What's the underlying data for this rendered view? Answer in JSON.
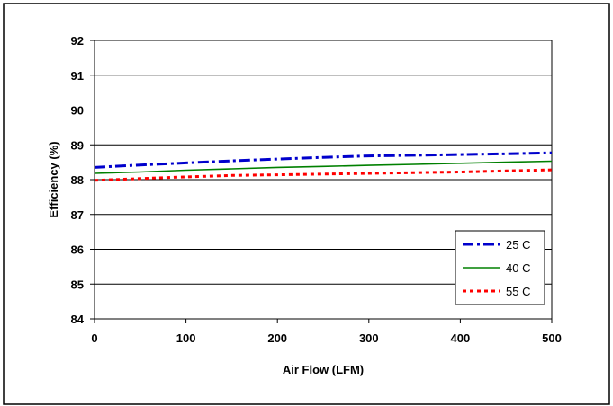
{
  "chart_data": {
    "type": "line",
    "title": "",
    "xlabel": "Air Flow (LFM)",
    "ylabel": "Efficiency (%)",
    "xlim": [
      0,
      500
    ],
    "ylim": [
      84,
      92
    ],
    "x_ticks": [
      0,
      100,
      200,
      300,
      400,
      500
    ],
    "y_ticks": [
      84,
      85,
      86,
      87,
      88,
      89,
      90,
      91,
      92
    ],
    "grid": "horizontal",
    "legend_position": "bottom-right",
    "series": [
      {
        "name": "25 C",
        "color": "#0000cc",
        "style": "dash-dot",
        "x": [
          0,
          50,
          100,
          150,
          200,
          250,
          300,
          350,
          400,
          450,
          500
        ],
        "y": [
          88.35,
          88.42,
          88.48,
          88.54,
          88.59,
          88.64,
          88.68,
          88.7,
          88.72,
          88.74,
          88.77
        ]
      },
      {
        "name": "40 C",
        "color": "#008000",
        "style": "solid",
        "x": [
          0,
          50,
          100,
          150,
          200,
          250,
          300,
          350,
          400,
          450,
          500
        ],
        "y": [
          88.18,
          88.22,
          88.27,
          88.31,
          88.35,
          88.38,
          88.41,
          88.44,
          88.47,
          88.5,
          88.53
        ]
      },
      {
        "name": "55 C",
        "color": "#ff0000",
        "style": "dotted",
        "x": [
          0,
          50,
          100,
          150,
          200,
          250,
          300,
          350,
          400,
          450,
          500
        ],
        "y": [
          87.98,
          88.03,
          88.08,
          88.12,
          88.14,
          88.16,
          88.18,
          88.2,
          88.22,
          88.25,
          88.28
        ]
      }
    ]
  }
}
